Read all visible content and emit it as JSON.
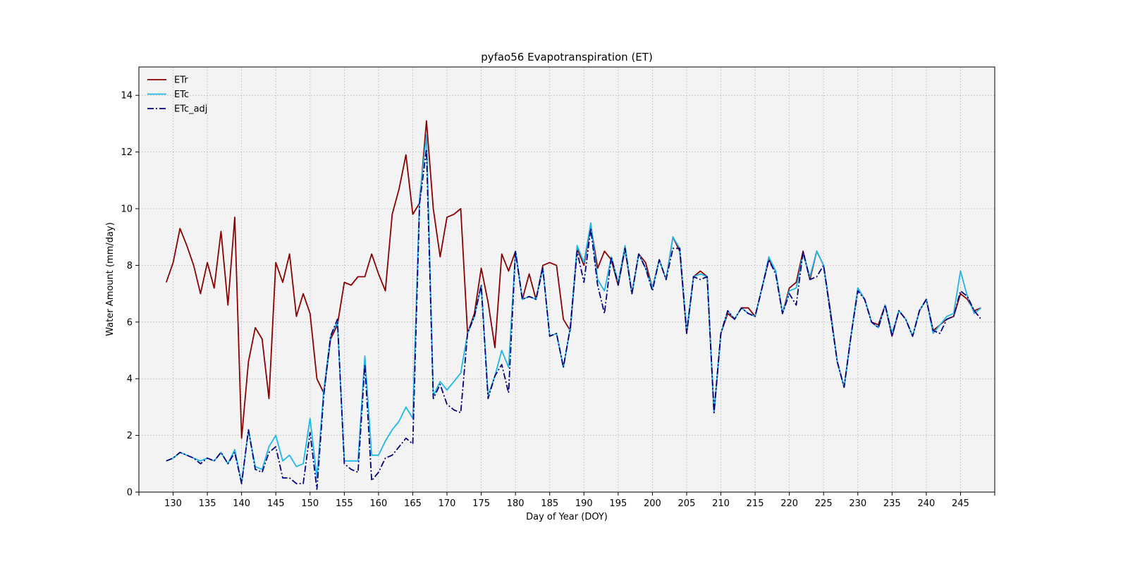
{
  "chart_data": {
    "type": "line",
    "title": "pyfao56 Evapotranspiration (ET)",
    "xlabel": "Day of Year (DOY)",
    "ylabel": "Water Amount (mm/day)",
    "xlim": [
      125,
      250
    ],
    "ylim": [
      0,
      15
    ],
    "xticks": [
      130,
      135,
      140,
      145,
      150,
      155,
      160,
      165,
      170,
      175,
      180,
      185,
      190,
      195,
      200,
      205,
      210,
      215,
      220,
      225,
      230,
      235,
      240,
      245
    ],
    "yticks": [
      0,
      2,
      4,
      6,
      8,
      10,
      12,
      14
    ],
    "grid": true,
    "legend_position": "top-left",
    "x": [
      129,
      130,
      131,
      132,
      133,
      134,
      135,
      136,
      137,
      138,
      139,
      140,
      141,
      142,
      143,
      144,
      145,
      146,
      147,
      148,
      149,
      150,
      151,
      152,
      153,
      154,
      155,
      156,
      157,
      158,
      159,
      160,
      161,
      162,
      163,
      164,
      165,
      166,
      167,
      168,
      169,
      170,
      171,
      172,
      173,
      174,
      175,
      176,
      177,
      178,
      179,
      180,
      181,
      182,
      183,
      184,
      185,
      186,
      187,
      188,
      189,
      190,
      191,
      192,
      193,
      194,
      195,
      196,
      197,
      198,
      199,
      200,
      201,
      202,
      203,
      204,
      205,
      206,
      207,
      208,
      209,
      210,
      211,
      212,
      213,
      214,
      215,
      216,
      217,
      218,
      219,
      220,
      221,
      222,
      223,
      224,
      225,
      226,
      227,
      228,
      229,
      230,
      231,
      232,
      233,
      234,
      235,
      236,
      237,
      238,
      239,
      240,
      241,
      242,
      243,
      244,
      245,
      246,
      247,
      248
    ],
    "series": [
      {
        "name": "ETr",
        "color": "#8b0000",
        "style": "solid",
        "values": [
          7.4,
          8.1,
          9.3,
          8.7,
          8.0,
          7.0,
          8.1,
          7.2,
          9.2,
          6.6,
          9.7,
          1.9,
          4.6,
          5.8,
          5.4,
          3.3,
          8.1,
          7.4,
          8.4,
          6.2,
          7.0,
          6.3,
          4.0,
          3.5,
          5.4,
          5.9,
          7.4,
          7.3,
          7.6,
          7.6,
          8.4,
          7.7,
          7.1,
          9.8,
          10.7,
          11.9,
          9.8,
          10.2,
          13.1,
          10.0,
          8.3,
          9.7,
          9.8,
          10.0,
          5.6,
          6.3,
          7.9,
          6.7,
          5.1,
          8.4,
          7.8,
          8.5,
          6.8,
          7.7,
          6.8,
          8.0,
          8.1,
          8.0,
          6.1,
          5.7,
          8.6,
          8.0,
          9.4,
          7.9,
          8.5,
          8.2,
          7.3,
          8.6,
          7.0,
          8.4,
          8.1,
          7.2,
          8.2,
          7.5,
          9.0,
          8.5,
          5.6,
          7.6,
          7.8,
          7.6,
          2.8,
          5.6,
          6.3,
          6.1,
          6.5,
          6.5,
          6.2,
          7.2,
          8.2,
          7.8,
          6.3,
          7.2,
          7.4,
          8.5,
          7.5,
          8.5,
          8.0,
          6.4,
          4.6,
          3.7,
          5.5,
          7.2,
          6.8,
          6.0,
          5.9,
          6.6,
          5.5,
          6.4,
          6.1,
          5.5,
          6.4,
          6.8,
          5.7,
          5.9,
          6.1,
          6.2,
          7.0,
          6.8,
          6.4,
          6.5
        ]
      },
      {
        "name": "ETc",
        "color": "#1fb7ea",
        "style": "solid",
        "values": [
          1.1,
          1.2,
          1.4,
          1.3,
          1.2,
          1.1,
          1.2,
          1.1,
          1.4,
          1.0,
          1.5,
          0.3,
          2.2,
          0.9,
          0.8,
          1.6,
          2.0,
          1.1,
          1.3,
          0.9,
          1.0,
          2.6,
          0.5,
          3.6,
          5.5,
          6.0,
          1.1,
          1.1,
          1.1,
          4.8,
          1.3,
          1.3,
          1.8,
          2.2,
          2.5,
          3.0,
          2.6,
          10.4,
          12.6,
          3.4,
          3.9,
          3.6,
          3.9,
          4.2,
          5.6,
          6.2,
          7.3,
          3.4,
          4.1,
          5.0,
          4.4,
          8.5,
          6.8,
          6.9,
          6.8,
          7.9,
          5.5,
          5.6,
          4.4,
          5.8,
          8.7,
          8.1,
          9.5,
          7.5,
          7.1,
          8.3,
          7.4,
          8.7,
          7.0,
          8.4,
          7.9,
          7.2,
          8.2,
          7.5,
          9.0,
          8.6,
          5.7,
          7.6,
          7.7,
          7.6,
          2.8,
          5.6,
          6.4,
          6.1,
          6.5,
          6.3,
          6.2,
          7.2,
          8.3,
          7.8,
          6.3,
          7.1,
          7.2,
          8.4,
          7.6,
          8.5,
          8.0,
          6.3,
          4.6,
          3.7,
          5.5,
          7.2,
          6.8,
          6.0,
          5.8,
          6.6,
          5.6,
          6.4,
          6.1,
          5.5,
          6.4,
          6.8,
          5.6,
          5.9,
          6.2,
          6.3,
          7.8,
          6.9,
          6.3,
          6.5
        ]
      },
      {
        "name": "ETc_adj",
        "color": "#000080",
        "style": "dashdot",
        "values": [
          1.1,
          1.2,
          1.4,
          1.3,
          1.2,
          1.0,
          1.2,
          1.1,
          1.4,
          1.0,
          1.4,
          0.3,
          2.2,
          0.8,
          0.7,
          1.4,
          1.6,
          0.5,
          0.5,
          0.3,
          0.3,
          2.1,
          0.1,
          3.4,
          5.5,
          6.1,
          1.0,
          0.8,
          0.7,
          4.5,
          0.4,
          0.7,
          1.2,
          1.3,
          1.6,
          1.9,
          1.7,
          10.2,
          12.1,
          3.3,
          3.8,
          3.1,
          2.9,
          2.8,
          5.6,
          6.2,
          7.3,
          3.3,
          4.1,
          4.5,
          3.5,
          8.5,
          6.8,
          6.9,
          6.8,
          7.9,
          5.5,
          5.6,
          4.4,
          5.8,
          8.5,
          7.4,
          9.3,
          7.3,
          6.3,
          8.3,
          7.3,
          8.6,
          7.0,
          8.4,
          7.9,
          7.1,
          8.2,
          7.5,
          8.6,
          8.6,
          5.6,
          7.6,
          7.5,
          7.6,
          2.8,
          5.6,
          6.4,
          6.1,
          6.5,
          6.3,
          6.2,
          7.2,
          8.2,
          7.7,
          6.3,
          7.0,
          6.6,
          8.5,
          7.5,
          7.6,
          8.0,
          6.3,
          4.6,
          3.7,
          5.5,
          7.1,
          6.8,
          6.0,
          5.8,
          6.6,
          5.5,
          6.4,
          6.1,
          5.5,
          6.4,
          6.8,
          5.7,
          5.6,
          6.1,
          6.2,
          7.1,
          6.9,
          6.4,
          6.1
        ]
      }
    ]
  }
}
